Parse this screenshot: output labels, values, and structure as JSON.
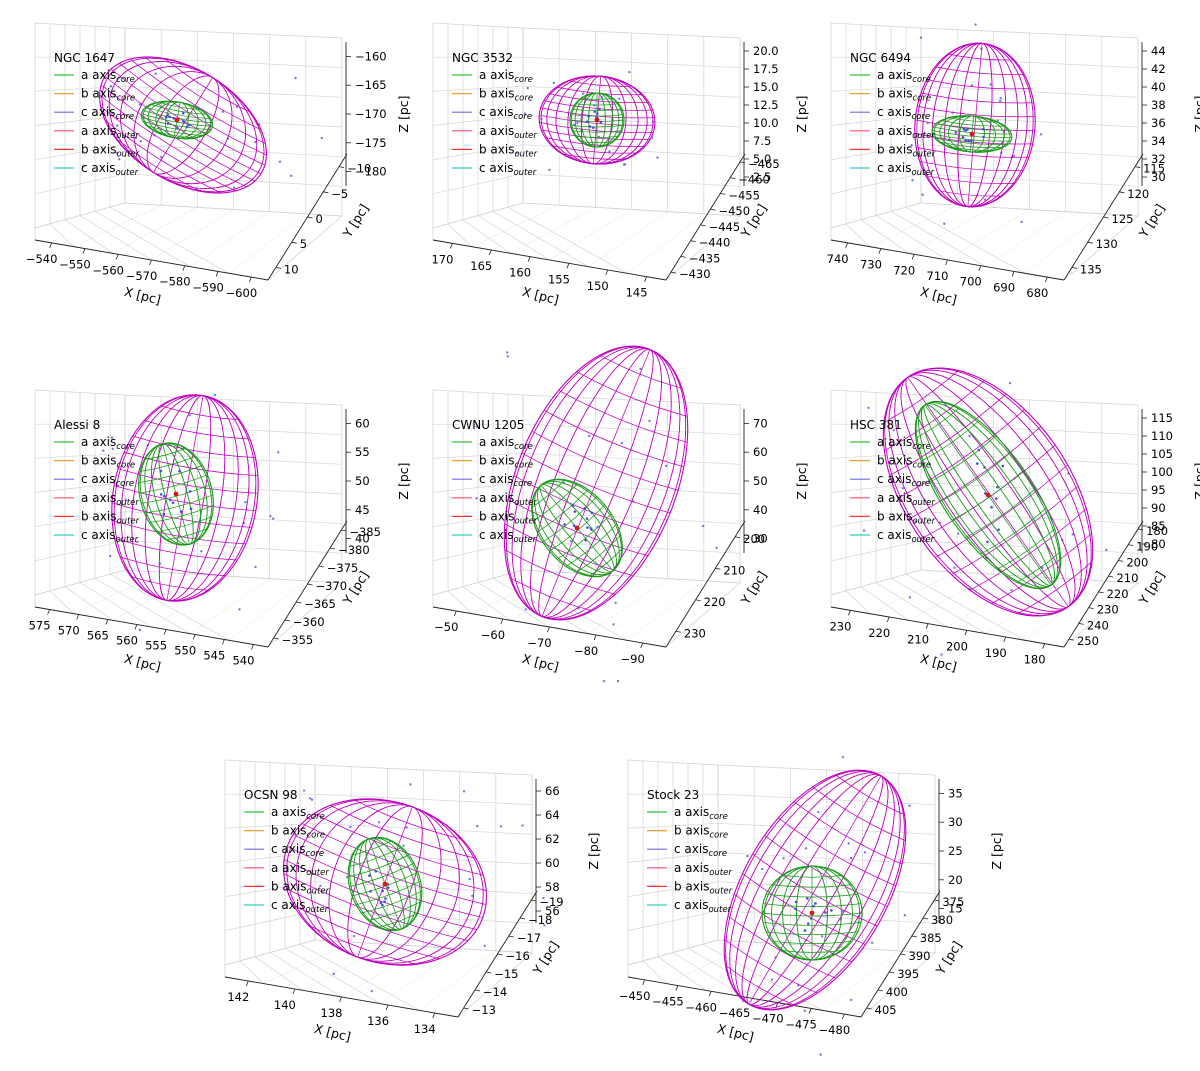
{
  "colors": {
    "outer_ellipsoid": "#c000c0",
    "core_ellipsoid": "#1a9a1a",
    "stars": "#4b4bd8",
    "center": "#d81818",
    "pane_line": "#d4d4d4",
    "legend": [
      "#35c435",
      "#f0a030",
      "#6f6fe8",
      "#ff4d6d",
      "#ff3030",
      "#30d0c0"
    ]
  },
  "legend_entries": [
    {
      "label": "a axis",
      "sub": "core"
    },
    {
      "label": "b axis",
      "sub": "core"
    },
    {
      "label": "c axis",
      "sub": "core"
    },
    {
      "label": "a axis",
      "sub": "outer"
    },
    {
      "label": "b axis",
      "sub": "outer"
    },
    {
      "label": "c axis",
      "sub": "outer"
    }
  ],
  "chart_data": [
    {
      "type": "scatter3d",
      "title": "NGC 1647",
      "xlabel": "X [pc]",
      "ylabel": "Y [pc]",
      "zlabel": "Z [pc]",
      "x_ticks": [
        "−540",
        "−550",
        "−560",
        "−570",
        "−580",
        "−590",
        "−600"
      ],
      "y_ticks": [
        "10",
        "5",
        "0",
        "−5",
        "−10"
      ],
      "z_ticks": [
        "−160",
        "−165",
        "−170",
        "−175",
        "−180"
      ],
      "outer": {
        "tilt_deg": 32
      },
      "core": {
        "tilt_deg": 10
      },
      "legend_stride": 1
    },
    {
      "type": "scatter3d",
      "title": "NGC 3532",
      "xlabel": "X [pc]",
      "ylabel": "Y [pc]",
      "zlabel": "Z [pc]",
      "x_ticks": [
        "170",
        "165",
        "160",
        "155",
        "150",
        "145"
      ],
      "y_ticks": [
        "−430",
        "−435",
        "−440",
        "−445",
        "−450",
        "−455",
        "−460",
        "−465"
      ],
      "z_ticks": [
        "20.0",
        "17.5",
        "15.0",
        "12.5",
        "10.0",
        "7.5",
        "5.0",
        "2.5"
      ],
      "outer": {
        "tilt_deg": 5
      },
      "core": {
        "tilt_deg": 0
      },
      "legend_stride": 1
    },
    {
      "type": "scatter3d",
      "title": "NGC 6494",
      "xlabel": "X [pc]",
      "ylabel": "Y [pc]",
      "zlabel": "Z [pc]",
      "x_ticks": [
        "740",
        "730",
        "720",
        "710",
        "700",
        "690",
        "680"
      ],
      "y_ticks": [
        "135",
        "130",
        "125",
        "120",
        "115"
      ],
      "z_ticks": [
        "44",
        "42",
        "40",
        "38",
        "36",
        "34",
        "32",
        "30"
      ],
      "outer": {
        "tilt_deg": 5
      },
      "core": {
        "tilt_deg": 5
      },
      "legend_stride": 1
    },
    {
      "type": "scatter3d",
      "title": "Alessi 8",
      "xlabel": "X [pc]",
      "ylabel": "Y [pc]",
      "zlabel": "Z [pc]",
      "x_ticks": [
        "575",
        "570",
        "565",
        "560",
        "555",
        "550",
        "545",
        "540"
      ],
      "y_ticks": [
        "−355",
        "−360",
        "−365",
        "−370",
        "−375",
        "−380",
        "−385"
      ],
      "z_ticks": [
        "60",
        "55",
        "50",
        "45",
        "40"
      ],
      "outer": {
        "tilt_deg": 10
      },
      "core": {
        "tilt_deg": -15
      },
      "legend_stride": 1
    },
    {
      "type": "scatter3d",
      "title": "CWNU 1205",
      "xlabel": "X [pc]",
      "ylabel": "Y [pc]",
      "zlabel": "Z [pc]",
      "x_ticks": [
        "−50",
        "−60",
        "−70",
        "−80",
        "−90"
      ],
      "y_ticks": [
        "230",
        "220",
        "210",
        "200"
      ],
      "z_ticks": [
        "70",
        "60",
        "50",
        "40",
        "30"
      ],
      "outer": {
        "tilt_deg": 22
      },
      "core": {
        "tilt_deg": -40
      },
      "legend_stride": 2
    },
    {
      "type": "scatter3d",
      "title": "HSC 381",
      "xlabel": "X [pc]",
      "ylabel": "Y [pc]",
      "zlabel": "Z [pc]",
      "x_ticks": [
        "230",
        "220",
        "210",
        "200",
        "190",
        "180"
      ],
      "y_ticks": [
        "250",
        "240",
        "230",
        "220",
        "210",
        "200",
        "190",
        "180"
      ],
      "z_ticks": [
        "115",
        "110",
        "105",
        "100",
        "95",
        "90",
        "85",
        "80"
      ],
      "outer": {
        "tilt_deg": -35
      },
      "core": {
        "tilt_deg": -35
      },
      "legend_stride": 1
    },
    {
      "type": "scatter3d",
      "title": "OCSN 98",
      "xlabel": "X [pc]",
      "ylabel": "Y [pc]",
      "zlabel": "Z [pc]",
      "x_ticks": [
        "142",
        "140",
        "138",
        "136",
        "134"
      ],
      "y_ticks": [
        "−13",
        "−14",
        "−15",
        "−16",
        "−17",
        "−18",
        "−19"
      ],
      "z_ticks": [
        "66",
        "64",
        "62",
        "60",
        "58",
        "56"
      ],
      "outer": {
        "tilt_deg": 20
      },
      "core": {
        "tilt_deg": -20
      },
      "legend_stride": 2
    },
    {
      "type": "scatter3d",
      "title": "Stock 23",
      "xlabel": "X [pc]",
      "ylabel": "Y [pc]",
      "zlabel": "Z [pc]",
      "x_ticks": [
        "−450",
        "−455",
        "−460",
        "−465",
        "−470",
        "−475",
        "−480"
      ],
      "y_ticks": [
        "405",
        "400",
        "395",
        "390",
        "385",
        "380",
        "375"
      ],
      "z_ticks": [
        "35",
        "30",
        "25",
        "20",
        "15"
      ],
      "outer": {
        "tilt_deg": 30
      },
      "core": {
        "tilt_deg": 0
      },
      "legend_stride": 1
    }
  ]
}
